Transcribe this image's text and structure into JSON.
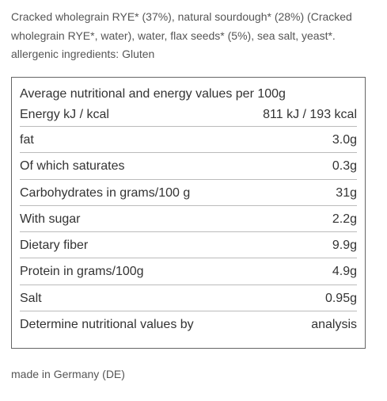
{
  "ingredients": {
    "text": "Cracked wholegrain RYE* (37%), natural sourdough* (28%) (Cracked wholegrain RYE*, water), water, flax seeds* (5%), sea salt, yeast*.",
    "allergens": "allergenic ingredients: Gluten"
  },
  "nutrition": {
    "title": "Average nutritional and energy values per 100g",
    "rows": [
      [
        "Energy kJ / kcal",
        "811 kJ / 193 kcal"
      ],
      [
        "fat",
        "3.0g"
      ],
      [
        "Of which saturates",
        "0.3g"
      ],
      [
        "Carbohydrates in grams/100 g",
        "31g"
      ],
      [
        "With sugar",
        "2.2g"
      ],
      [
        "Dietary fiber",
        "9.9g"
      ],
      [
        "Protein in grams/100g",
        "4.9g"
      ],
      [
        "Salt",
        "0.95g"
      ],
      [
        "Determine nutritional values by",
        "analysis"
      ]
    ]
  },
  "footer": "made in Germany (DE)"
}
